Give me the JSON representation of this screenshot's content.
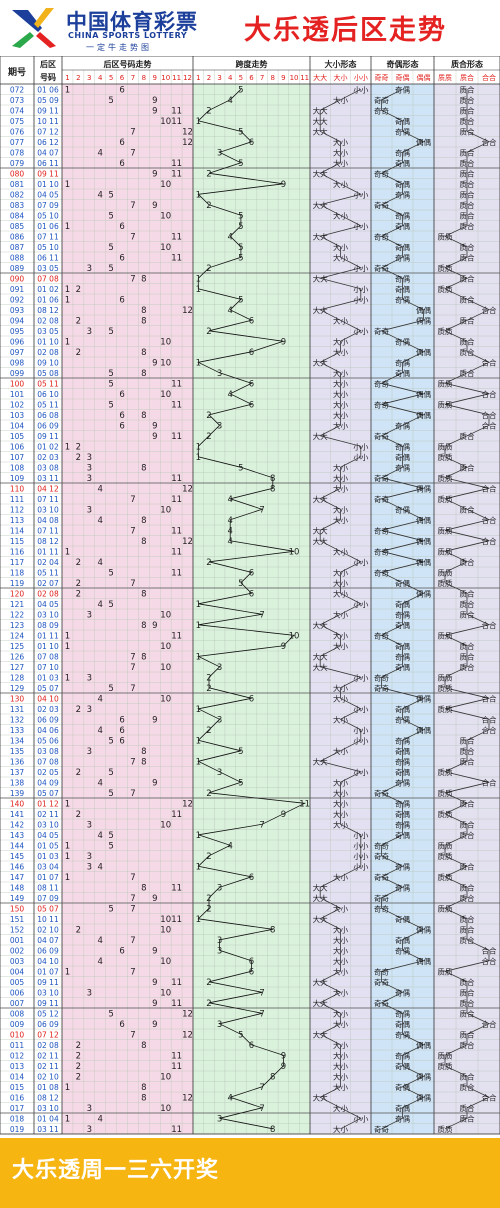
{
  "header": {
    "brand_cn": "中国体育彩票",
    "brand_en": "CHINA SPORTS LOTTERY",
    "slogan": "一定牛走势图",
    "title": "大乐透后区走势"
  },
  "footer": {
    "text": "大乐透周一三六开奖"
  },
  "colors": {
    "brand_blue": "#1b3f9a",
    "title_red": "#e52222",
    "footer_yellow": "#f7b512",
    "pink_region": "#f6d9e6",
    "green_region": "#daf2dc",
    "purple_region": "#e3e0f2",
    "blue_region": "#cfe4f7",
    "lavender_region": "#e3e0f0",
    "issue_blue": "#1f55c0",
    "milestone_red": "#e0201c"
  },
  "chart_data": {
    "type": "table",
    "headers": {
      "issue": "期号",
      "draw": "后区号码",
      "trend": "后区号码走势",
      "span": "跨度走势",
      "size": "大小形态",
      "parity": "奇偶形态",
      "prime": "质合形态"
    },
    "numbers": [
      "1",
      "2",
      "3",
      "4",
      "5",
      "6",
      "7",
      "8",
      "9",
      "10",
      "11",
      "12"
    ],
    "spans": [
      "1",
      "2",
      "3",
      "4",
      "5",
      "6",
      "7",
      "8",
      "9",
      "10",
      "11"
    ],
    "size_cols": [
      "大大",
      "大小",
      "小小"
    ],
    "parity_cols": [
      "奇奇",
      "奇偶",
      "偶偶"
    ],
    "prime_cols": [
      "质质",
      "质合",
      "合合"
    ],
    "rows": [
      {
        "issue": "072",
        "a": 1,
        "b": 6
      },
      {
        "issue": "073",
        "a": 5,
        "b": 9
      },
      {
        "issue": "074",
        "a": 9,
        "b": 11
      },
      {
        "issue": "075",
        "a": 10,
        "b": 11
      },
      {
        "issue": "076",
        "a": 7,
        "b": 12
      },
      {
        "issue": "077",
        "a": 6,
        "b": 12
      },
      {
        "issue": "078",
        "a": 4,
        "b": 7
      },
      {
        "issue": "079",
        "a": 6,
        "b": 11
      },
      {
        "issue": "080",
        "a": 9,
        "b": 11
      },
      {
        "issue": "081",
        "a": 1,
        "b": 10
      },
      {
        "issue": "082",
        "a": 4,
        "b": 5
      },
      {
        "issue": "083",
        "a": 7,
        "b": 9
      },
      {
        "issue": "084",
        "a": 5,
        "b": 10
      },
      {
        "issue": "085",
        "a": 1,
        "b": 6
      },
      {
        "issue": "086",
        "a": 7,
        "b": 11
      },
      {
        "issue": "087",
        "a": 5,
        "b": 10
      },
      {
        "issue": "088",
        "a": 6,
        "b": 11
      },
      {
        "issue": "089",
        "a": 3,
        "b": 5
      },
      {
        "issue": "090",
        "a": 7,
        "b": 8
      },
      {
        "issue": "091",
        "a": 1,
        "b": 2
      },
      {
        "issue": "092",
        "a": 1,
        "b": 6
      },
      {
        "issue": "093",
        "a": 8,
        "b": 12
      },
      {
        "issue": "094",
        "a": 2,
        "b": 8
      },
      {
        "issue": "095",
        "a": 3,
        "b": 5
      },
      {
        "issue": "096",
        "a": 1,
        "b": 10
      },
      {
        "issue": "097",
        "a": 2,
        "b": 8
      },
      {
        "issue": "098",
        "a": 9,
        "b": 10
      },
      {
        "issue": "099",
        "a": 5,
        "b": 8
      },
      {
        "issue": "100",
        "a": 5,
        "b": 11
      },
      {
        "issue": "101",
        "a": 6,
        "b": 10
      },
      {
        "issue": "102",
        "a": 5,
        "b": 11
      },
      {
        "issue": "103",
        "a": 6,
        "b": 8
      },
      {
        "issue": "104",
        "a": 6,
        "b": 9
      },
      {
        "issue": "105",
        "a": 9,
        "b": 11
      },
      {
        "issue": "106",
        "a": 1,
        "b": 2
      },
      {
        "issue": "107",
        "a": 2,
        "b": 3
      },
      {
        "issue": "108",
        "a": 3,
        "b": 8
      },
      {
        "issue": "109",
        "a": 3,
        "b": 11
      },
      {
        "issue": "110",
        "a": 4,
        "b": 12
      },
      {
        "issue": "111",
        "a": 7,
        "b": 11
      },
      {
        "issue": "112",
        "a": 3,
        "b": 10
      },
      {
        "issue": "113",
        "a": 4,
        "b": 8
      },
      {
        "issue": "114",
        "a": 7,
        "b": 11
      },
      {
        "issue": "115",
        "a": 8,
        "b": 12
      },
      {
        "issue": "116",
        "a": 1,
        "b": 11
      },
      {
        "issue": "117",
        "a": 2,
        "b": 4
      },
      {
        "issue": "118",
        "a": 5,
        "b": 11
      },
      {
        "issue": "119",
        "a": 2,
        "b": 7
      },
      {
        "issue": "120",
        "a": 2,
        "b": 8
      },
      {
        "issue": "121",
        "a": 4,
        "b": 5
      },
      {
        "issue": "122",
        "a": 3,
        "b": 10
      },
      {
        "issue": "123",
        "a": 8,
        "b": 9
      },
      {
        "issue": "124",
        "a": 1,
        "b": 11
      },
      {
        "issue": "125",
        "a": 1,
        "b": 10
      },
      {
        "issue": "126",
        "a": 7,
        "b": 8
      },
      {
        "issue": "127",
        "a": 7,
        "b": 10
      },
      {
        "issue": "128",
        "a": 1,
        "b": 3
      },
      {
        "issue": "129",
        "a": 5,
        "b": 7
      },
      {
        "issue": "130",
        "a": 4,
        "b": 10
      },
      {
        "issue": "131",
        "a": 2,
        "b": 3
      },
      {
        "issue": "132",
        "a": 6,
        "b": 9
      },
      {
        "issue": "133",
        "a": 4,
        "b": 6
      },
      {
        "issue": "134",
        "a": 5,
        "b": 6
      },
      {
        "issue": "135",
        "a": 3,
        "b": 8
      },
      {
        "issue": "136",
        "a": 7,
        "b": 8
      },
      {
        "issue": "137",
        "a": 2,
        "b": 5
      },
      {
        "issue": "138",
        "a": 4,
        "b": 9
      },
      {
        "issue": "139",
        "a": 5,
        "b": 7
      },
      {
        "issue": "140",
        "a": 1,
        "b": 12
      },
      {
        "issue": "141",
        "a": 2,
        "b": 11
      },
      {
        "issue": "142",
        "a": 3,
        "b": 10
      },
      {
        "issue": "143",
        "a": 4,
        "b": 5
      },
      {
        "issue": "144",
        "a": 1,
        "b": 5
      },
      {
        "issue": "145",
        "a": 1,
        "b": 3
      },
      {
        "issue": "146",
        "a": 3,
        "b": 4
      },
      {
        "issue": "147",
        "a": 1,
        "b": 7
      },
      {
        "issue": "148",
        "a": 8,
        "b": 11
      },
      {
        "issue": "149",
        "a": 7,
        "b": 9
      },
      {
        "issue": "150",
        "a": 5,
        "b": 7
      },
      {
        "issue": "151",
        "a": 10,
        "b": 11
      },
      {
        "issue": "152",
        "a": 2,
        "b": 10
      },
      {
        "issue": "001",
        "a": 4,
        "b": 7
      },
      {
        "issue": "002",
        "a": 6,
        "b": 9
      },
      {
        "issue": "003",
        "a": 4,
        "b": 10
      },
      {
        "issue": "004",
        "a": 1,
        "b": 7
      },
      {
        "issue": "005",
        "a": 9,
        "b": 11
      },
      {
        "issue": "006",
        "a": 3,
        "b": 10
      },
      {
        "issue": "007",
        "a": 9,
        "b": 11
      },
      {
        "issue": "008",
        "a": 5,
        "b": 12
      },
      {
        "issue": "009",
        "a": 6,
        "b": 9
      },
      {
        "issue": "010",
        "a": 7,
        "b": 12
      },
      {
        "issue": "011",
        "a": 2,
        "b": 8
      },
      {
        "issue": "012",
        "a": 2,
        "b": 11
      },
      {
        "issue": "013",
        "a": 2,
        "b": 11
      },
      {
        "issue": "014",
        "a": 2,
        "b": 10
      },
      {
        "issue": "015",
        "a": 1,
        "b": 8
      },
      {
        "issue": "016",
        "a": 8,
        "b": 12
      },
      {
        "issue": "017",
        "a": 3,
        "b": 10
      },
      {
        "issue": "018",
        "a": 1,
        "b": 4
      },
      {
        "issue": "019",
        "a": 3,
        "b": 11
      }
    ]
  }
}
